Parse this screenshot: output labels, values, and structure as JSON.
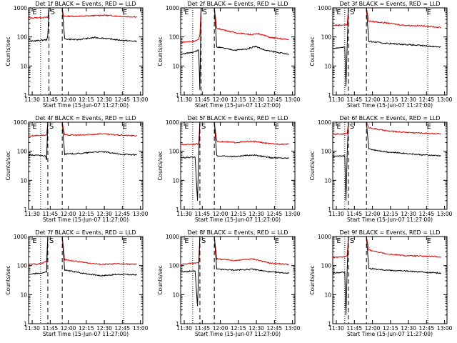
{
  "colors": {
    "events": "#000000",
    "lld": "#e00000",
    "axes": "#000000",
    "background": "#ffffff"
  },
  "common": {
    "xlabel": "Start Time (15-Jun-07 11:27:00)",
    "ylabel": "Counts/sec",
    "xticks": [
      "11:30",
      "11:45",
      "12:00",
      "12:15",
      "12:30",
      "12:45",
      "13:00"
    ],
    "yticks": [
      "1",
      "10",
      "100",
      "1000"
    ],
    "scale": "log-y",
    "ylim": [
      1,
      1000
    ]
  },
  "chart_data": [
    {
      "type": "line",
      "title": "Det 1f BLACK = Events, RED = LLD",
      "markers": [
        "E",
        "S",
        "E"
      ],
      "series": [
        {
          "name": "LLD",
          "values": [
            [
              0,
              450
            ],
            [
              16,
              470
            ],
            [
              17,
              1000
            ],
            [
              28,
              1000
            ],
            [
              29,
              520
            ],
            [
              40,
              510
            ],
            [
              63,
              560
            ],
            [
              80,
              500
            ],
            [
              90,
              490
            ]
          ]
        },
        {
          "name": "Events",
          "values": [
            [
              0,
              70
            ],
            [
              15,
              80
            ],
            [
              16,
              110
            ],
            [
              17,
              1000
            ],
            [
              28,
              1000
            ],
            [
              30,
              85
            ],
            [
              40,
              80
            ],
            [
              55,
              95
            ],
            [
              63,
              90
            ],
            [
              75,
              78
            ],
            [
              90,
              70
            ]
          ]
        }
      ]
    },
    {
      "type": "line",
      "title": "Det 2f BLACK = Events, RED = LLD",
      "markers": [
        "E",
        "S",
        "E"
      ],
      "series": [
        {
          "name": "LLD",
          "values": [
            [
              0,
              65
            ],
            [
              10,
              70
            ],
            [
              15,
              80
            ],
            [
              16,
              120
            ],
            [
              17,
              1000
            ],
            [
              28,
              1000
            ],
            [
              30,
              200
            ],
            [
              45,
              140
            ],
            [
              60,
              120
            ],
            [
              65,
              130
            ],
            [
              75,
              95
            ],
            [
              90,
              80
            ]
          ]
        },
        {
          "name": "Events",
          "values": [
            [
              0,
              25
            ],
            [
              10,
              30
            ],
            [
              15,
              35
            ],
            [
              16,
              1.5
            ],
            [
              17,
              1000
            ],
            [
              28,
              1000
            ],
            [
              30,
              45
            ],
            [
              45,
              35
            ],
            [
              55,
              38
            ],
            [
              62,
              48
            ],
            [
              70,
              35
            ],
            [
              90,
              25
            ]
          ]
        }
      ]
    },
    {
      "type": "line",
      "title": "Det 3f BLACK = Events, RED = LLD",
      "markers": [
        "E",
        "S",
        "E"
      ],
      "series": [
        {
          "name": "LLD",
          "values": [
            [
              0,
              250
            ],
            [
              12,
              260
            ],
            [
              13,
              1000
            ],
            [
              28,
              1000
            ],
            [
              30,
              350
            ],
            [
              45,
              300
            ],
            [
              60,
              250
            ],
            [
              75,
              240
            ],
            [
              90,
              210
            ]
          ]
        },
        {
          "name": "Events",
          "values": [
            [
              0,
              40
            ],
            [
              10,
              45
            ],
            [
              11,
              2
            ],
            [
              12,
              50
            ],
            [
              13,
              1000
            ],
            [
              28,
              1000
            ],
            [
              30,
              70
            ],
            [
              45,
              60
            ],
            [
              60,
              55
            ],
            [
              75,
              50
            ],
            [
              90,
              45
            ]
          ]
        }
      ]
    },
    {
      "type": "line",
      "title": "Det 4f BLACK = Events, RED = LLD",
      "markers": [
        "E",
        "S",
        "E"
      ],
      "series": [
        {
          "name": "LLD",
          "values": [
            [
              0,
              340
            ],
            [
              15,
              360
            ],
            [
              16,
              1000
            ],
            [
              28,
              1000
            ],
            [
              30,
              360
            ],
            [
              45,
              360
            ],
            [
              60,
              400
            ],
            [
              75,
              360
            ],
            [
              90,
              340
            ]
          ]
        },
        {
          "name": "Events",
          "values": [
            [
              0,
              75
            ],
            [
              14,
              70
            ],
            [
              15,
              50
            ],
            [
              16,
              1000
            ],
            [
              28,
              1000
            ],
            [
              30,
              80
            ],
            [
              45,
              85
            ],
            [
              55,
              95
            ],
            [
              63,
              95
            ],
            [
              75,
              80
            ],
            [
              90,
              75
            ]
          ]
        }
      ]
    },
    {
      "type": "line",
      "title": "Det 5f BLACK = Events, RED = LLD",
      "markers": [
        "E",
        "S",
        "E"
      ],
      "series": [
        {
          "name": "LLD",
          "values": [
            [
              0,
              170
            ],
            [
              10,
              175
            ],
            [
              15,
              180
            ],
            [
              16,
              1000
            ],
            [
              28,
              1000
            ],
            [
              30,
              220
            ],
            [
              45,
              200
            ],
            [
              60,
              220
            ],
            [
              75,
              180
            ],
            [
              90,
              175
            ]
          ]
        },
        {
          "name": "Events",
          "values": [
            [
              0,
              60
            ],
            [
              12,
              62
            ],
            [
              14,
              2
            ],
            [
              15,
              65
            ],
            [
              16,
              1000
            ],
            [
              28,
              1000
            ],
            [
              30,
              70
            ],
            [
              45,
              65
            ],
            [
              60,
              75
            ],
            [
              75,
              60
            ],
            [
              90,
              58
            ]
          ]
        }
      ]
    },
    {
      "type": "line",
      "title": "Det 6f BLACK = Events, RED = LLD",
      "markers": [
        "E",
        "S",
        "E"
      ],
      "series": [
        {
          "name": "LLD",
          "values": [
            [
              0,
              380
            ],
            [
              12,
              400
            ],
            [
              13,
              1000
            ],
            [
              28,
              1000
            ],
            [
              30,
              650
            ],
            [
              45,
              500
            ],
            [
              60,
              450
            ],
            [
              75,
              420
            ],
            [
              90,
              400
            ]
          ]
        },
        {
          "name": "Events",
          "values": [
            [
              0,
              65
            ],
            [
              10,
              70
            ],
            [
              11,
              2
            ],
            [
              12,
              80
            ],
            [
              13,
              1000
            ],
            [
              28,
              1000
            ],
            [
              30,
              120
            ],
            [
              45,
              95
            ],
            [
              60,
              85
            ],
            [
              75,
              75
            ],
            [
              90,
              70
            ]
          ]
        }
      ]
    },
    {
      "type": "line",
      "title": "Det 7f BLACK = Events, RED = LLD",
      "markers": [
        "E",
        "S",
        "E"
      ],
      "series": [
        {
          "name": "LLD",
          "values": [
            [
              0,
              110
            ],
            [
              10,
              115
            ],
            [
              15,
              140
            ],
            [
              16,
              1000
            ],
            [
              28,
              1000
            ],
            [
              30,
              160
            ],
            [
              45,
              130
            ],
            [
              60,
              110
            ],
            [
              75,
              115
            ],
            [
              90,
              110
            ]
          ]
        },
        {
          "name": "Events",
          "values": [
            [
              0,
              50
            ],
            [
              10,
              55
            ],
            [
              15,
              60
            ],
            [
              16,
              1000
            ],
            [
              28,
              1000
            ],
            [
              30,
              70
            ],
            [
              45,
              55
            ],
            [
              60,
              45
            ],
            [
              75,
              50
            ],
            [
              90,
              48
            ]
          ]
        }
      ]
    },
    {
      "type": "line",
      "title": "Det 8f BLACK = Events, RED = LLD",
      "markers": [
        "E",
        "S",
        "E"
      ],
      "series": [
        {
          "name": "LLD",
          "values": [
            [
              0,
              110
            ],
            [
              10,
              120
            ],
            [
              15,
              130
            ],
            [
              16,
              1000
            ],
            [
              28,
              1000
            ],
            [
              30,
              170
            ],
            [
              45,
              150
            ],
            [
              60,
              170
            ],
            [
              75,
              120
            ],
            [
              90,
              110
            ]
          ]
        },
        {
          "name": "Events",
          "values": [
            [
              0,
              60
            ],
            [
              12,
              65
            ],
            [
              14,
              4
            ],
            [
              15,
              70
            ],
            [
              16,
              1000
            ],
            [
              28,
              1000
            ],
            [
              30,
              75
            ],
            [
              45,
              70
            ],
            [
              60,
              75
            ],
            [
              75,
              60
            ],
            [
              90,
              55
            ]
          ]
        }
      ]
    },
    {
      "type": "line",
      "title": "Det 9f BLACK = Events, RED = LLD",
      "markers": [
        "E",
        "S",
        "E"
      ],
      "series": [
        {
          "name": "LLD",
          "values": [
            [
              0,
              190
            ],
            [
              10,
              200
            ],
            [
              12,
              220
            ],
            [
              13,
              1000
            ],
            [
              28,
              1000
            ],
            [
              30,
              350
            ],
            [
              45,
              250
            ],
            [
              60,
              220
            ],
            [
              75,
              210
            ],
            [
              90,
              200
            ]
          ]
        },
        {
          "name": "Events",
          "values": [
            [
              0,
              55
            ],
            [
              10,
              60
            ],
            [
              11,
              2
            ],
            [
              12,
              70
            ],
            [
              13,
              1000
            ],
            [
              28,
              1000
            ],
            [
              30,
              80
            ],
            [
              45,
              70
            ],
            [
              60,
              65
            ],
            [
              75,
              60
            ],
            [
              90,
              55
            ]
          ]
        }
      ]
    }
  ]
}
